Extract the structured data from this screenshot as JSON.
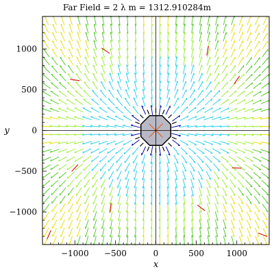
{
  "chart_data": {
    "type": "vector_field",
    "title": "Far Field = 2 λ m = 1312.910284m",
    "xlabel": "x",
    "ylabel": "y",
    "xlim": [
      -1400,
      1400
    ],
    "ylim": [
      -1400,
      1400
    ],
    "xticks": [
      -1000,
      -500,
      0,
      500,
      1000
    ],
    "yticks": [
      -1000,
      -500,
      0,
      500,
      1000
    ],
    "xtick_labels": [
      "−1000",
      "−500",
      "0",
      "500",
      "1000"
    ],
    "ytick_labels": [
      "−1000",
      "−500",
      "0",
      "500",
      "1000"
    ],
    "grid": false,
    "arrow_grid_spacing": 100,
    "source_radius": 200,
    "source_fill": "#b9b9c6",
    "source_stroke": "#000000",
    "color_scale": [
      "#0000a0",
      "#2ed0e6",
      "#a0ec3a",
      "#58cc2a",
      "#e8e010",
      "#d81818"
    ]
  }
}
